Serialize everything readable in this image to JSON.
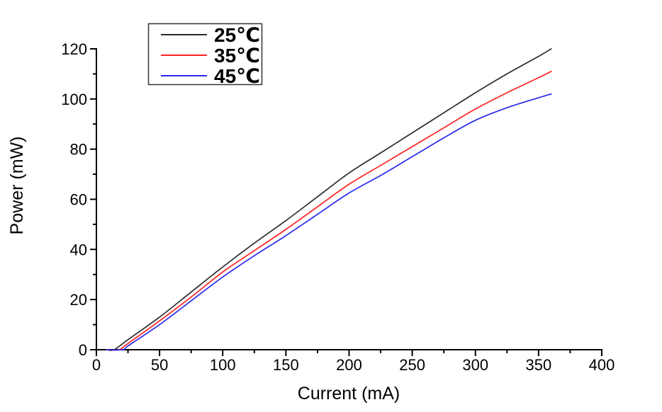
{
  "canvas": {
    "background": "#ffffff"
  },
  "chart_data": {
    "type": "line",
    "title": "",
    "xlabel": "Current (mA)",
    "ylabel": "Power (mW)",
    "xlim": [
      0,
      400
    ],
    "ylim": [
      0,
      120
    ],
    "x_major_ticks": [
      0,
      50,
      100,
      150,
      200,
      250,
      300,
      350,
      400
    ],
    "x_minor_ticks": [
      25,
      75,
      125,
      175,
      225,
      275,
      325,
      375
    ],
    "y_major_ticks": [
      0,
      20,
      40,
      60,
      80,
      100,
      120
    ],
    "y_minor_ticks": [
      10,
      30,
      50,
      70,
      90,
      110
    ],
    "grid": false,
    "axis_color": "#000000",
    "legend_position": "top-left-inside",
    "series": [
      {
        "name": "25℃",
        "color": "#2b2b2b",
        "points": [
          [
            8,
            0
          ],
          [
            14,
            0
          ],
          [
            25,
            4
          ],
          [
            50,
            13
          ],
          [
            75,
            23
          ],
          [
            100,
            33
          ],
          [
            125,
            42.5
          ],
          [
            150,
            51.5
          ],
          [
            175,
            61
          ],
          [
            200,
            70.5
          ],
          [
            225,
            78.5
          ],
          [
            250,
            86.5
          ],
          [
            275,
            94.5
          ],
          [
            300,
            102.5
          ],
          [
            325,
            110
          ],
          [
            350,
            117
          ],
          [
            360,
            120
          ]
        ]
      },
      {
        "name": "35℃",
        "color": "#ff2222",
        "points": [
          [
            8,
            0
          ],
          [
            18,
            0
          ],
          [
            25,
            2.5
          ],
          [
            50,
            11.5
          ],
          [
            75,
            21
          ],
          [
            100,
            31
          ],
          [
            125,
            39.5
          ],
          [
            150,
            48
          ],
          [
            175,
            57
          ],
          [
            200,
            66
          ],
          [
            225,
            73.5
          ],
          [
            250,
            81
          ],
          [
            275,
            88.5
          ],
          [
            300,
            96
          ],
          [
            325,
            102.5
          ],
          [
            350,
            108.5
          ],
          [
            360,
            111
          ]
        ]
      },
      {
        "name": "45℃",
        "color": "#2a2aee",
        "points": [
          [
            8,
            0
          ],
          [
            21,
            0
          ],
          [
            25,
            1.5
          ],
          [
            50,
            10
          ],
          [
            75,
            19.5
          ],
          [
            100,
            29
          ],
          [
            125,
            37.5
          ],
          [
            150,
            45.5
          ],
          [
            175,
            54
          ],
          [
            200,
            62.5
          ],
          [
            225,
            69.5
          ],
          [
            250,
            77
          ],
          [
            275,
            84.5
          ],
          [
            300,
            91.5
          ],
          [
            325,
            96.5
          ],
          [
            350,
            100.5
          ],
          [
            360,
            102
          ]
        ]
      }
    ]
  }
}
